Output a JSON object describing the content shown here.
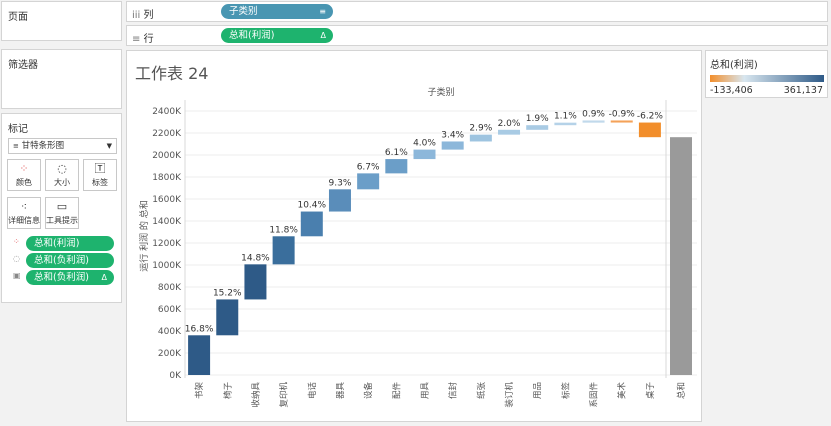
{
  "pages": {
    "title": "页面"
  },
  "filters": {
    "title": "筛选器"
  },
  "marks": {
    "title": "标记",
    "type": "甘特条形图",
    "buttons": {
      "color": "颜色",
      "size": "大小",
      "label": "标签",
      "detail": "详细信息",
      "tooltip": "工具提示"
    },
    "pills": [
      {
        "label": "总和(利润)"
      },
      {
        "label": "总和(负利润)"
      },
      {
        "label": "总和(负利润)"
      }
    ]
  },
  "shelves": {
    "columns": {
      "label": "列",
      "pill": "子类别"
    },
    "rows": {
      "label": "行",
      "pill": "总和(利润)"
    }
  },
  "legend": {
    "title": "总和(利润)",
    "min": "-133,406",
    "max": "361,137",
    "colors": [
      "#f28e2b",
      "#d8e6ef",
      "#2e5a87"
    ]
  },
  "sheet": {
    "title": "工作表 24"
  },
  "chart_data": {
    "type": "waterfall",
    "title": "子类别",
    "ylabel": "运行 利润 的 总和",
    "y_unit": "K",
    "ylim": [
      0,
      2500
    ],
    "yticks": [
      {
        "value": 0,
        "label": "0K"
      },
      {
        "value": 200,
        "label": "200K"
      },
      {
        "value": 400,
        "label": "400K"
      },
      {
        "value": 600,
        "label": "600K"
      },
      {
        "value": 800,
        "label": "800K"
      },
      {
        "value": 1000,
        "label": "1000K"
      },
      {
        "value": 1200,
        "label": "1200K"
      },
      {
        "value": 1400,
        "label": "1400K"
      },
      {
        "value": 1600,
        "label": "1600K"
      },
      {
        "value": 1800,
        "label": "1800K"
      },
      {
        "value": 2000,
        "label": "2000K"
      },
      {
        "value": 2200,
        "label": "2200K"
      },
      {
        "value": 2400,
        "label": "2400K"
      }
    ],
    "categories": [
      "书架",
      "椅子",
      "收纳具",
      "复印机",
      "电话",
      "器具",
      "设备",
      "配件",
      "用具",
      "信封",
      "纸张",
      "装订机",
      "用品",
      "标签",
      "系固件",
      "美术",
      "桌子"
    ],
    "start": [
      0,
      361,
      687,
      1006,
      1261,
      1486,
      1688,
      1833,
      1963,
      2049,
      2123,
      2185,
      2229,
      2271,
      2294,
      2314,
      2295
    ],
    "end": [
      361,
      687,
      1006,
      1261,
      1486,
      1688,
      1833,
      1963,
      2049,
      2123,
      2185,
      2229,
      2271,
      2294,
      2314,
      2295,
      2162
    ],
    "labels": [
      "16.8%",
      "15.2%",
      "14.8%",
      "11.8%",
      "10.4%",
      "9.3%",
      "6.7%",
      "6.1%",
      "4.0%",
      "3.4%",
      "2.9%",
      "2.0%",
      "1.9%",
      "1.1%",
      "0.9%",
      "-0.9%",
      "-6.2%"
    ],
    "colors": [
      "#2e5a87",
      "#2e5a87",
      "#2e5a87",
      "#3a6e9c",
      "#4a7fae",
      "#5a8dba",
      "#6b9ec8",
      "#6b9ec8",
      "#8cb7da",
      "#8cb7da",
      "#9ec4e0",
      "#a9cbe4",
      "#a9cbe4",
      "#b5d2e8",
      "#c1d9eb",
      "#f4a259",
      "#f28e2b"
    ],
    "total": {
      "label": "总和",
      "value": 2162,
      "color": "#9a9a9a"
    }
  }
}
